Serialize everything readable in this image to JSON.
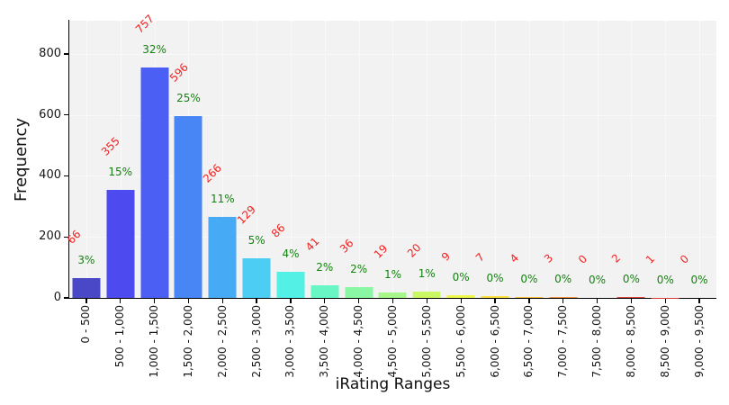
{
  "chart_data": {
    "type": "bar",
    "title": "",
    "xlabel": "iRating Ranges",
    "ylabel": "Frequency",
    "categories": [
      "0 - 500",
      "500 - 1,000",
      "1,000 - 1,500",
      "1,500 - 2,000",
      "2,000 - 2,500",
      "2,500 - 3,000",
      "3,000 - 3,500",
      "3,500 - 4,000",
      "4,000 - 4,500",
      "4,500 - 5,000",
      "5,000 - 5,500",
      "5,500 - 6,000",
      "6,000 - 6,500",
      "6,500 - 7,000",
      "7,000 - 7,500",
      "7,500 - 8,000",
      "8,000 - 8,500",
      "8,500 - 9,000",
      "9,000 - 9,500"
    ],
    "values": [
      66,
      355,
      757,
      596,
      266,
      129,
      86,
      41,
      36,
      19,
      20,
      9,
      7,
      4,
      3,
      0,
      2,
      1,
      0
    ],
    "percent_labels": [
      "3%",
      "15%",
      "32%",
      "25%",
      "11%",
      "5%",
      "4%",
      "2%",
      "2%",
      "1%",
      "1%",
      "0%",
      "0%",
      "0%",
      "0%",
      "0%",
      "0%",
      "0%",
      "0%"
    ],
    "bar_colors": [
      "#4b48c8",
      "#4d4af0",
      "#4c5ff5",
      "#4886f6",
      "#47aaf5",
      "#4bcdf4",
      "#53f1e5",
      "#68f6c4",
      "#8af7a5",
      "#a5f78c",
      "#ccf765",
      "#eef74a",
      "#fce13e",
      "#f9c03e",
      "#f59238",
      "#ef6c3c",
      "#e0433b",
      "#d63838",
      "#cc2e36"
    ],
    "yticks": [
      0,
      200,
      400,
      600,
      800
    ],
    "ylim": [
      0,
      909
    ],
    "grid": true,
    "legend": false,
    "plot_bg": "#f2f2f2",
    "count_label_color": "#f32222",
    "percent_label_color": "#13830f"
  }
}
